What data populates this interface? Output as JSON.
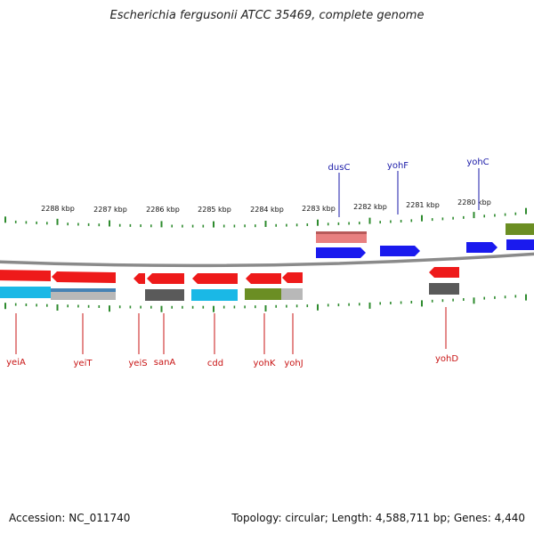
{
  "title": "Escherichia fergusonii ATCC 35469, complete genome",
  "footer": {
    "accession_label": "Accession: NC_011740",
    "topology_label": "Topology: circular; Length: 4,588,711 bp; Genes: 4,440"
  },
  "scale_labels": [
    "2288 kbp",
    "2287 kbp",
    "2286 kbp",
    "2285 kbp",
    "2284 kbp",
    "2283 kbp",
    "2282 kbp",
    "2281 kbp",
    "2280 kbp"
  ],
  "genes_above": [
    "dusC",
    "yohF",
    "yohC"
  ],
  "genes_below": [
    "yeiA",
    "yeiT",
    "yeiS",
    "sanA",
    "cdd",
    "yohK",
    "yohJ",
    "yohD"
  ],
  "colors": {
    "forward_strand": "#1a1aee",
    "reverse_strand": "#ee1a1a",
    "label_above": "#1a1aa8",
    "label_below": "#c81414",
    "tick": "#2e8b2e",
    "backbone": "#8a8a8a",
    "cyan": "#1ab8e6",
    "olive": "#6b8e23",
    "dark_gray": "#5a5a5a",
    "light_gray": "#b8b8b8",
    "pink": "#e88080"
  }
}
